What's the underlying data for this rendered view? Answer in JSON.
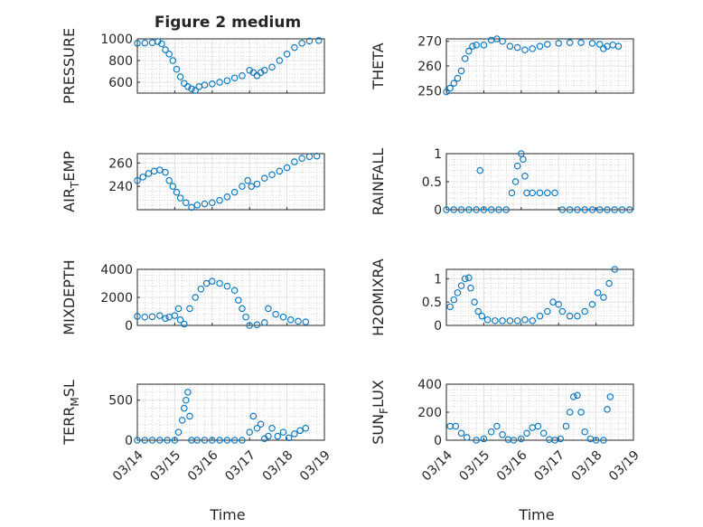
{
  "figure": {
    "title": "Figure 2 medium",
    "xlabel": "Time",
    "marker_color": "#0072bd",
    "grid_color": "#bdbdbd"
  },
  "chart_data": [
    {
      "type": "scatter",
      "ylabel": "PRESSURE",
      "ylim": [
        500,
        1000
      ],
      "yticks": [
        600,
        800,
        1000
      ],
      "yticklabels": [
        "600",
        "800",
        "1000"
      ],
      "xticklabels": [],
      "points": [
        [
          0,
          960
        ],
        [
          0.2,
          962
        ],
        [
          0.4,
          965
        ],
        [
          0.55,
          975
        ],
        [
          0.65,
          955
        ],
        [
          0.75,
          900
        ],
        [
          0.85,
          860
        ],
        [
          0.95,
          800
        ],
        [
          1.05,
          720
        ],
        [
          1.15,
          650
        ],
        [
          1.25,
          590
        ],
        [
          1.35,
          560
        ],
        [
          1.45,
          540
        ],
        [
          1.55,
          525
        ],
        [
          1.65,
          560
        ],
        [
          1.8,
          575
        ],
        [
          2,
          585
        ],
        [
          2.2,
          600
        ],
        [
          2.4,
          615
        ],
        [
          2.6,
          640
        ],
        [
          2.8,
          660
        ],
        [
          3.0,
          710
        ],
        [
          3.1,
          690
        ],
        [
          3.2,
          660
        ],
        [
          3.3,
          690
        ],
        [
          3.4,
          710
        ],
        [
          3.6,
          740
        ],
        [
          3.8,
          800
        ],
        [
          4.0,
          860
        ],
        [
          4.2,
          920
        ],
        [
          4.4,
          960
        ],
        [
          4.6,
          980
        ],
        [
          4.85,
          985
        ]
      ]
    },
    {
      "type": "scatter",
      "ylabel": "THETA",
      "ylim": [
        249,
        271
      ],
      "yticks": [
        250,
        260,
        270
      ],
      "yticklabels": [
        "250",
        "260",
        "270"
      ],
      "xticklabels": [],
      "points": [
        [
          0,
          249.5
        ],
        [
          0.1,
          251
        ],
        [
          0.2,
          253
        ],
        [
          0.3,
          255
        ],
        [
          0.4,
          258
        ],
        [
          0.5,
          263
        ],
        [
          0.6,
          266
        ],
        [
          0.7,
          268
        ],
        [
          0.8,
          268.5
        ],
        [
          1.0,
          268.5
        ],
        [
          1.2,
          270.5
        ],
        [
          1.35,
          271
        ],
        [
          1.5,
          270
        ],
        [
          1.7,
          268
        ],
        [
          1.9,
          267.5
        ],
        [
          2.1,
          266.5
        ],
        [
          2.3,
          267
        ],
        [
          2.5,
          268
        ],
        [
          2.7,
          268.8
        ],
        [
          3.0,
          269.2
        ],
        [
          3.3,
          269.5
        ],
        [
          3.6,
          269.5
        ],
        [
          3.9,
          269.2
        ],
        [
          4.1,
          268.8
        ],
        [
          4.2,
          267
        ],
        [
          4.3,
          268
        ],
        [
          4.45,
          268.5
        ],
        [
          4.6,
          268
        ]
      ]
    },
    {
      "type": "scatter",
      "ylabel": "AIR_TEMP",
      "ylim": [
        220,
        268
      ],
      "yticks": [
        240,
        260
      ],
      "yticklabels": [
        "240",
        "260"
      ],
      "xticklabels": [],
      "points": [
        [
          0,
          245
        ],
        [
          0.15,
          248
        ],
        [
          0.3,
          251
        ],
        [
          0.45,
          253
        ],
        [
          0.6,
          254
        ],
        [
          0.75,
          252
        ],
        [
          0.85,
          245
        ],
        [
          0.95,
          240
        ],
        [
          1.05,
          235
        ],
        [
          1.15,
          230
        ],
        [
          1.3,
          226
        ],
        [
          1.45,
          222
        ],
        [
          1.6,
          224
        ],
        [
          1.8,
          225
        ],
        [
          2.0,
          226
        ],
        [
          2.2,
          228
        ],
        [
          2.4,
          231
        ],
        [
          2.6,
          235
        ],
        [
          2.8,
          240
        ],
        [
          2.95,
          245
        ],
        [
          3.05,
          240
        ],
        [
          3.2,
          242
        ],
        [
          3.4,
          247
        ],
        [
          3.6,
          250
        ],
        [
          3.8,
          253
        ],
        [
          4.0,
          256
        ],
        [
          4.2,
          261
        ],
        [
          4.4,
          264
        ],
        [
          4.6,
          265.5
        ],
        [
          4.8,
          266
        ]
      ]
    },
    {
      "type": "scatter",
      "ylabel": "RAINFALL",
      "ylim": [
        0,
        1
      ],
      "yticks": [
        0,
        0.5,
        1
      ],
      "yticklabels": [
        "0",
        "0.5",
        "1"
      ],
      "xticklabels": [],
      "points": [
        [
          0,
          0
        ],
        [
          0.2,
          0
        ],
        [
          0.4,
          0
        ],
        [
          0.6,
          0
        ],
        [
          0.8,
          0
        ],
        [
          0.9,
          0.7
        ],
        [
          1.0,
          0
        ],
        [
          1.2,
          0
        ],
        [
          1.4,
          0
        ],
        [
          1.6,
          0
        ],
        [
          1.75,
          0.3
        ],
        [
          1.85,
          0.5
        ],
        [
          1.9,
          0.78
        ],
        [
          2.0,
          1.0
        ],
        [
          2.05,
          0.9
        ],
        [
          2.1,
          0.6
        ],
        [
          2.15,
          0.3
        ],
        [
          2.3,
          0.3
        ],
        [
          2.5,
          0.3
        ],
        [
          2.7,
          0.3
        ],
        [
          2.9,
          0.3
        ],
        [
          3.1,
          0
        ],
        [
          3.3,
          0
        ],
        [
          3.5,
          0
        ],
        [
          3.7,
          0
        ],
        [
          3.9,
          0
        ],
        [
          4.1,
          0
        ],
        [
          4.3,
          0
        ],
        [
          4.5,
          0
        ],
        [
          4.7,
          0
        ],
        [
          4.9,
          0
        ]
      ]
    },
    {
      "type": "scatter",
      "ylabel": "MIXDEPTH",
      "ylim": [
        0,
        4000
      ],
      "yticks": [
        0,
        2000,
        4000
      ],
      "yticklabels": [
        "0",
        "2000",
        "4000"
      ],
      "xticklabels": [],
      "points": [
        [
          0,
          650
        ],
        [
          0.2,
          600
        ],
        [
          0.4,
          620
        ],
        [
          0.6,
          700
        ],
        [
          0.75,
          500
        ],
        [
          0.85,
          600
        ],
        [
          1.0,
          700
        ],
        [
          1.1,
          1200
        ],
        [
          1.15,
          400
        ],
        [
          1.25,
          100
        ],
        [
          1.4,
          1200
        ],
        [
          1.55,
          2000
        ],
        [
          1.7,
          2600
        ],
        [
          1.85,
          3000
        ],
        [
          2.0,
          3150
        ],
        [
          2.2,
          3000
        ],
        [
          2.4,
          2800
        ],
        [
          2.6,
          2500
        ],
        [
          2.7,
          1800
        ],
        [
          2.8,
          1200
        ],
        [
          2.9,
          600
        ],
        [
          3.0,
          0
        ],
        [
          3.2,
          50
        ],
        [
          3.4,
          200
        ],
        [
          3.5,
          1200
        ],
        [
          3.7,
          800
        ],
        [
          3.9,
          600
        ],
        [
          4.1,
          400
        ],
        [
          4.3,
          300
        ],
        [
          4.5,
          250
        ]
      ]
    },
    {
      "type": "scatter",
      "ylabel": "H2OMIXRA",
      "ylim": [
        0,
        1.2
      ],
      "yticks": [
        0,
        0.5,
        1
      ],
      "yticklabels": [
        "0",
        "0.5",
        "1"
      ],
      "xticklabels": [],
      "points": [
        [
          0.1,
          0.4
        ],
        [
          0.2,
          0.55
        ],
        [
          0.3,
          0.7
        ],
        [
          0.4,
          0.85
        ],
        [
          0.5,
          1.0
        ],
        [
          0.6,
          1.02
        ],
        [
          0.65,
          0.8
        ],
        [
          0.75,
          0.5
        ],
        [
          0.85,
          0.3
        ],
        [
          0.95,
          0.2
        ],
        [
          1.1,
          0.12
        ],
        [
          1.3,
          0.1
        ],
        [
          1.5,
          0.1
        ],
        [
          1.7,
          0.1
        ],
        [
          1.9,
          0.1
        ],
        [
          2.1,
          0.12
        ],
        [
          2.3,
          0.1
        ],
        [
          2.5,
          0.2
        ],
        [
          2.7,
          0.3
        ],
        [
          2.85,
          0.5
        ],
        [
          3.0,
          0.45
        ],
        [
          3.1,
          0.3
        ],
        [
          3.3,
          0.2
        ],
        [
          3.5,
          0.2
        ],
        [
          3.7,
          0.3
        ],
        [
          3.9,
          0.45
        ],
        [
          4.05,
          0.7
        ],
        [
          4.2,
          0.6
        ],
        [
          4.35,
          0.9
        ],
        [
          4.5,
          1.2
        ]
      ]
    },
    {
      "type": "scatter",
      "ylabel": "TERR_MSL",
      "ylim": [
        0,
        700
      ],
      "yticks": [
        0,
        500
      ],
      "yticklabels": [
        "0",
        "500"
      ],
      "xticklabels": [
        "03/14",
        "03/15",
        "03/16",
        "03/17",
        "03/18",
        "03/19"
      ],
      "points": [
        [
          0,
          0
        ],
        [
          0.2,
          0
        ],
        [
          0.4,
          0
        ],
        [
          0.6,
          0
        ],
        [
          0.8,
          0
        ],
        [
          1.0,
          0
        ],
        [
          1.1,
          100
        ],
        [
          1.2,
          250
        ],
        [
          1.25,
          400
        ],
        [
          1.3,
          500
        ],
        [
          1.35,
          600
        ],
        [
          1.4,
          300
        ],
        [
          1.45,
          0
        ],
        [
          1.6,
          0
        ],
        [
          1.8,
          0
        ],
        [
          2.0,
          0
        ],
        [
          2.2,
          0
        ],
        [
          2.4,
          0
        ],
        [
          2.6,
          0
        ],
        [
          2.8,
          0
        ],
        [
          3.0,
          100
        ],
        [
          3.1,
          300
        ],
        [
          3.2,
          150
        ],
        [
          3.3,
          200
        ],
        [
          3.4,
          20
        ],
        [
          3.5,
          50
        ],
        [
          3.6,
          150
        ],
        [
          3.75,
          50
        ],
        [
          3.9,
          100
        ],
        [
          4.05,
          30
        ],
        [
          4.2,
          80
        ],
        [
          4.35,
          120
        ],
        [
          4.5,
          150
        ]
      ]
    },
    {
      "type": "scatter",
      "ylabel": "SUN_FLUX",
      "ylim": [
        0,
        400
      ],
      "yticks": [
        0,
        200,
        400
      ],
      "yticklabels": [
        "0",
        "200",
        "400"
      ],
      "xticklabels": [
        "03/14",
        "03/15",
        "03/16",
        "03/17",
        "03/18",
        "03/19"
      ],
      "points": [
        [
          0.1,
          100
        ],
        [
          0.25,
          100
        ],
        [
          0.4,
          50
        ],
        [
          0.55,
          20
        ],
        [
          0.8,
          0
        ],
        [
          1.0,
          10
        ],
        [
          1.2,
          60
        ],
        [
          1.35,
          100
        ],
        [
          1.5,
          40
        ],
        [
          1.65,
          5
        ],
        [
          1.8,
          0
        ],
        [
          2.0,
          10
        ],
        [
          2.15,
          50
        ],
        [
          2.3,
          90
        ],
        [
          2.45,
          100
        ],
        [
          2.6,
          50
        ],
        [
          2.75,
          5
        ],
        [
          2.9,
          0
        ],
        [
          3.05,
          10
        ],
        [
          3.2,
          100
        ],
        [
          3.3,
          200
        ],
        [
          3.4,
          310
        ],
        [
          3.5,
          320
        ],
        [
          3.6,
          200
        ],
        [
          3.7,
          60
        ],
        [
          3.85,
          10
        ],
        [
          4.0,
          0
        ],
        [
          4.2,
          0
        ],
        [
          4.3,
          220
        ],
        [
          4.38,
          310
        ]
      ]
    }
  ]
}
